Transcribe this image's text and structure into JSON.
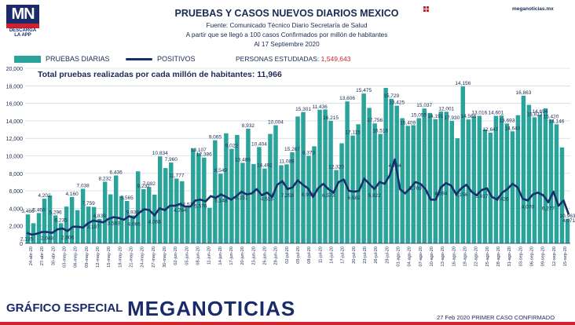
{
  "header": {
    "logo_text": "MN",
    "logo_sub1": "DESCARGA",
    "logo_sub2": "LA APP",
    "title": "PRUEBAS Y CASOS NUEVOS DIARIOS MEXICO",
    "subtitle1": "Fuente: Comunicado Técnico Diario Secretaría de Salud",
    "subtitle2": "A partir que se llegó a 100 casos Confirmados por millón de habitantes",
    "subtitle3": "Al 17 Septiembre 2020",
    "site": "meganoticias.mx"
  },
  "legend": {
    "bars_label": "PRUEBAS DIARIAS",
    "line_label": "POSITIVOS",
    "persons_label": "PERSONAS ESTUDIADAS:",
    "persons_value": "1,549,643"
  },
  "footer": {
    "left": "GRÁFICO ESPECIAL",
    "brand": "MEGANOTICIAS",
    "right": "27 Feb 2020 PRIMER CASO CONFIRMADO"
  },
  "colors": {
    "bars": "#2aa39a",
    "line": "#15306a",
    "accent": "#d4202a",
    "text": "#1b2a55"
  },
  "chart_data": {
    "type": "bar",
    "annotation": "Total pruebas realizadas por cada millón de habitantes:",
    "annotation_value": "11,966",
    "ylim": [
      0,
      20000
    ],
    "y_ticks": [
      "0",
      "2,000",
      "4,000",
      "6,000",
      "8,000",
      "10,000",
      "12,000",
      "14,000",
      "16,000",
      "18,000",
      "20,000"
    ],
    "x_tick_labels": [
      "24-abr-20",
      "27-abr-20",
      "30-abr-20",
      "03-may-20",
      "06-may-20",
      "09-may-20",
      "12-may-20",
      "15-may-20",
      "18-may-20",
      "21-may-20",
      "24-may-20",
      "27-may-20",
      "30-may-20",
      "02-jun-20",
      "05-jun-20",
      "08-jun-20",
      "11-jun-20",
      "14-jun-20",
      "17-jun-20",
      "20-jun-20",
      "23-jun-20",
      "26-jun-20",
      "29-jun-20",
      "02-jul-20",
      "05-jul-20",
      "08-jul-20",
      "11-jul-20",
      "14-jul-20",
      "17-jul-20",
      "20-jul-20",
      "23-jul-20",
      "26-jul-20",
      "29-jul-20",
      "01-ago-20",
      "04-ago-20",
      "07-ago-20",
      "10-ago-20",
      "13-ago-20",
      "16-ago-20",
      "19-ago-20",
      "22-ago-20",
      "25-ago-20",
      "28-ago-20",
      "31-ago-20",
      "03-sep-20",
      "06-sep-20",
      "09-sep-20",
      "12-sep-20",
      "15-sep-20"
    ],
    "series": [
      {
        "name": "PRUEBAS DIARIAS",
        "type": "bar",
        "values": [
          3300,
          2300,
          3466,
          5100,
          5460,
          3200,
          2300,
          4202,
          5300,
          3800,
          6235,
          4200,
          4160,
          2800,
          7038,
          5600,
          7759,
          5400,
          4839,
          3197,
          8232,
          6200,
          6436,
          5565,
          9936,
          8600,
          9232,
          7400,
          7092,
          4066,
          10834,
          10300,
          9800,
          4065,
          11777,
          7960,
          12575,
          10800,
          12386,
          9200,
          13107,
          9065,
          11000,
          8549,
          12500,
          13489,
          8932,
          9022,
          10404,
          14492,
          15000,
          10004,
          11089,
          15267,
          15301,
          14000,
          8373,
          11436,
          16215,
          12320,
          13606,
          17115,
          15475,
          13700,
          12500,
          17756,
          16516,
          15729,
          14300,
          13425,
          13500,
          14300,
          15409,
          14900,
          14191,
          15055,
          15037,
          14000,
          12001,
          17930,
          14156,
          14500,
          14566,
          13016,
          12647,
          14566,
          14601,
          13693,
          12800,
          14640,
          16863,
          15823,
          14400,
          14694,
          15420,
          14146,
          13600,
          10963,
          2800
        ],
        "labeled": [
          {
            "value": "3,466"
          },
          {
            "value": "5,460"
          },
          {
            "value": "4,202"
          },
          {
            "value": "5,296"
          },
          {
            "value": "6,235"
          },
          {
            "value": "4,160"
          },
          {
            "value": "7,038"
          },
          {
            "value": "7,759"
          },
          {
            "value": "4,839"
          },
          {
            "value": "8,232"
          },
          {
            "value": "6,436"
          },
          {
            "value": "5,565"
          },
          {
            "value": "9,936"
          },
          {
            "value": "9,232"
          },
          {
            "value": "7,092"
          },
          {
            "value": "10,834"
          },
          {
            "value": "7,960"
          },
          {
            "value": "11,777"
          },
          {
            "value": "12,575"
          },
          {
            "value": "13,107"
          },
          {
            "value": "12,386"
          },
          {
            "value": "9,065"
          },
          {
            "value": "8,549"
          },
          {
            "value": "9,022"
          },
          {
            "value": "13,489"
          },
          {
            "value": "8,932"
          },
          {
            "value": "10,404"
          },
          {
            "value": "14,492"
          },
          {
            "value": "10,004"
          },
          {
            "value": "11,089"
          },
          {
            "value": "15,267"
          },
          {
            "value": "15,301"
          },
          {
            "value": "8,373"
          },
          {
            "value": "11,436"
          },
          {
            "value": "16,215"
          },
          {
            "value": "12,320"
          },
          {
            "value": "13,606"
          },
          {
            "value": "17,115"
          },
          {
            "value": "15,475"
          },
          {
            "value": "17,756"
          },
          {
            "value": "16,516"
          },
          {
            "value": "15,729"
          },
          {
            "value": "13,425"
          },
          {
            "value": "15,409"
          },
          {
            "value": "15,055"
          },
          {
            "value": "15,037"
          },
          {
            "value": "14,191"
          },
          {
            "value": "12,001"
          },
          {
            "value": "17,930"
          },
          {
            "value": "14,156"
          },
          {
            "value": "14,566"
          },
          {
            "value": "13,016"
          },
          {
            "value": "12,647"
          },
          {
            "value": "14,601"
          },
          {
            "value": "13,693"
          },
          {
            "value": "14,640"
          },
          {
            "value": "16,863"
          },
          {
            "value": "15,823"
          },
          {
            "value": "14,694"
          },
          {
            "value": "15,420"
          },
          {
            "value": "14,146"
          },
          {
            "value": "10,963"
          }
        ]
      },
      {
        "name": "POSITIVOS",
        "type": "line",
        "values": [
          1200,
          1000,
          1100,
          1300,
          1300,
          1200,
          1600,
          1700,
          1400,
          1900,
          1900,
          1800,
          2300,
          2600,
          2500,
          2400,
          2800,
          3000,
          2900,
          2700,
          3100,
          2900,
          3500,
          3900,
          3800,
          3200,
          4000,
          3800,
          4300,
          4300,
          4500,
          4200,
          4200,
          4900,
          5000,
          4800,
          5400,
          5200,
          5600,
          5300,
          5000,
          5400,
          5900,
          5600,
          5700,
          6200,
          5500,
          5800,
          5300,
          6700,
          7100,
          6200,
          6400,
          7200,
          6700,
          6300,
          5300,
          6300,
          6800,
          6200,
          5800,
          7000,
          7300,
          6000,
          5900,
          6000,
          7400,
          6800,
          6200,
          7000,
          6800,
          7800,
          9600,
          6200,
          5700,
          6300,
          7000,
          6800,
          6200,
          5000,
          5000,
          6400,
          6900,
          6600,
          5600,
          6300,
          6700,
          5900,
          5500,
          6100,
          6300,
          5300,
          5000,
          5800,
          6200,
          6800,
          6400,
          5100,
          4900,
          5600,
          5800,
          5500,
          4700,
          5900,
          4300,
          4900,
          3300
        ],
        "labeled": [
          {
            "value": "2,135"
          },
          {
            "value": "2,048"
          },
          {
            "value": "2,806"
          },
          {
            "value": "3,197"
          },
          {
            "value": "3,563"
          },
          {
            "value": "4,065"
          },
          {
            "value": "4,066"
          },
          {
            "value": "4,794"
          },
          {
            "value": "5,576"
          },
          {
            "value": "5,148"
          },
          {
            "value": "6,151"
          },
          {
            "value": "4,516"
          },
          {
            "value": "7,258"
          },
          {
            "value": "6,993"
          },
          {
            "value": "6,573"
          },
          {
            "value": "6,582"
          },
          {
            "value": "5,822"
          },
          {
            "value": "4,764"
          },
          {
            "value": "5,709"
          },
          {
            "value": "4,694"
          },
          {
            "value": "6,156"
          },
          {
            "value": "5,017"
          },
          {
            "value": "6,426"
          },
          {
            "value": "4,070"
          },
          {
            "value": "6,277"
          },
          {
            "value": "4,071"
          }
        ]
      }
    ]
  }
}
